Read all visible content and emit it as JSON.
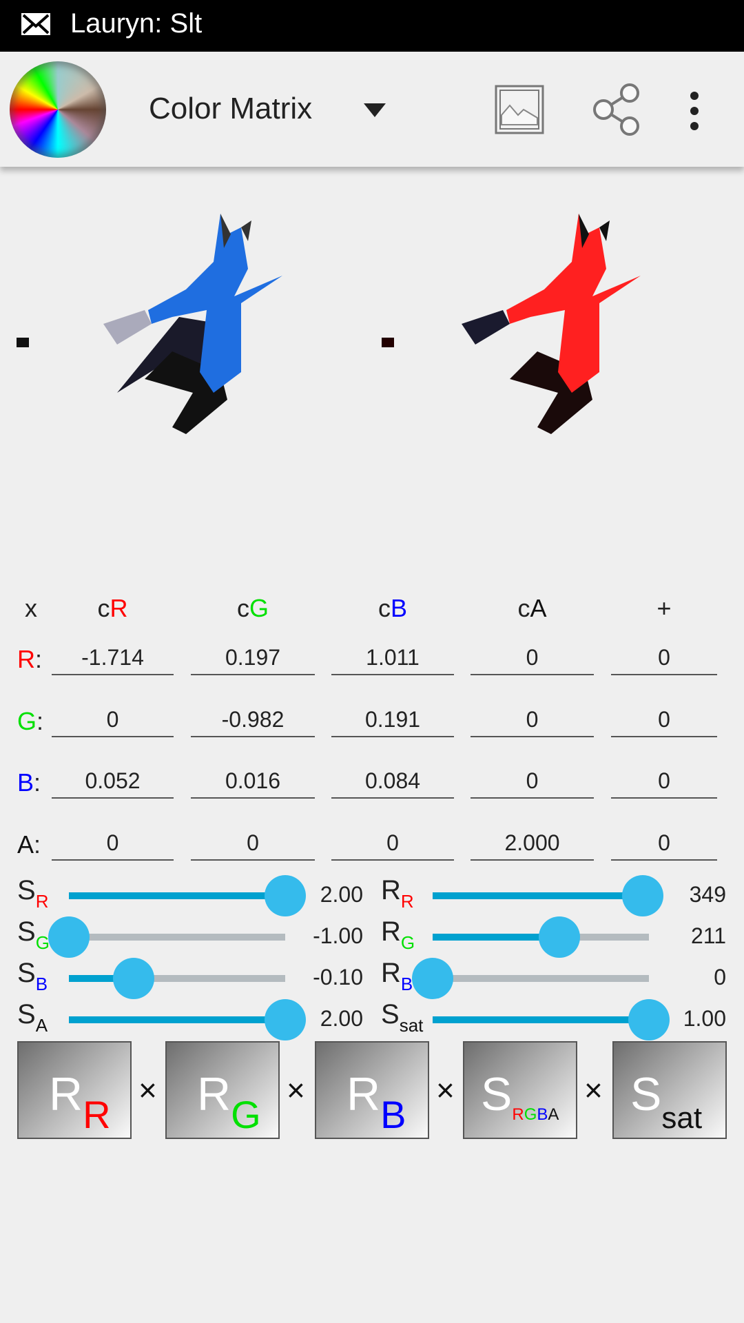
{
  "status_bar": {
    "icon": "mail-icon",
    "notification": "Lauryn: Slt"
  },
  "toolbar": {
    "logo": "color-wheel-icon",
    "title": "Color Matrix",
    "icons": [
      "dropdown-caret-icon",
      "image-icon",
      "share-icon",
      "overflow-menu-icon"
    ]
  },
  "matrix": {
    "headers": [
      {
        "pre": "x",
        "ch": ""
      },
      {
        "pre": "c",
        "ch": "R"
      },
      {
        "pre": "c",
        "ch": "G"
      },
      {
        "pre": "c",
        "ch": "B"
      },
      {
        "pre": "c",
        "ch": "A"
      },
      {
        "pre": "+",
        "ch": ""
      }
    ],
    "rows": [
      {
        "label": "R",
        "values": [
          "-1.714",
          "0.197",
          "1.011",
          "0",
          "0"
        ]
      },
      {
        "label": "G",
        "values": [
          "0",
          "-0.982",
          "0.191",
          "0",
          "0"
        ]
      },
      {
        "label": "B",
        "values": [
          "0.052",
          "0.016",
          "0.084",
          "0",
          "0"
        ]
      },
      {
        "label": "A",
        "values": [
          "0",
          "0",
          "0",
          "2.000",
          "0"
        ]
      }
    ]
  },
  "sliders": {
    "left": [
      {
        "main": "S",
        "sub": "R",
        "value": "2.00",
        "fraction": 1.0
      },
      {
        "main": "S",
        "sub": "G",
        "value": "-1.00",
        "fraction": 0.0
      },
      {
        "main": "S",
        "sub": "B",
        "value": "-0.10",
        "fraction": 0.3
      },
      {
        "main": "S",
        "sub": "A",
        "value": "2.00",
        "fraction": 1.0
      }
    ],
    "right": [
      {
        "main": "R",
        "sub": "R",
        "value": "349",
        "fraction": 0.97
      },
      {
        "main": "R",
        "sub": "G",
        "value": "211",
        "fraction": 0.586
      },
      {
        "main": "R",
        "sub": "B",
        "value": "0",
        "fraction": 0.0
      },
      {
        "main": "S",
        "sub": "sat",
        "value": "1.00",
        "fraction": 1.0
      }
    ]
  },
  "buttons": [
    {
      "main": "R",
      "sub": "R"
    },
    {
      "main": "R",
      "sub": "G"
    },
    {
      "main": "R",
      "sub": "B"
    },
    {
      "main": "S",
      "sub": "RGBA"
    },
    {
      "main": "S",
      "sub": "sat"
    }
  ],
  "operator": "×",
  "colors": {
    "R": "#ff0000",
    "G": "#00e000",
    "B": "#0000ff",
    "A": "#111111",
    "sat": "#111111",
    "slider_fill": "#00a1cf",
    "thumb": "#35bbec",
    "track": "#b4bbbf"
  }
}
